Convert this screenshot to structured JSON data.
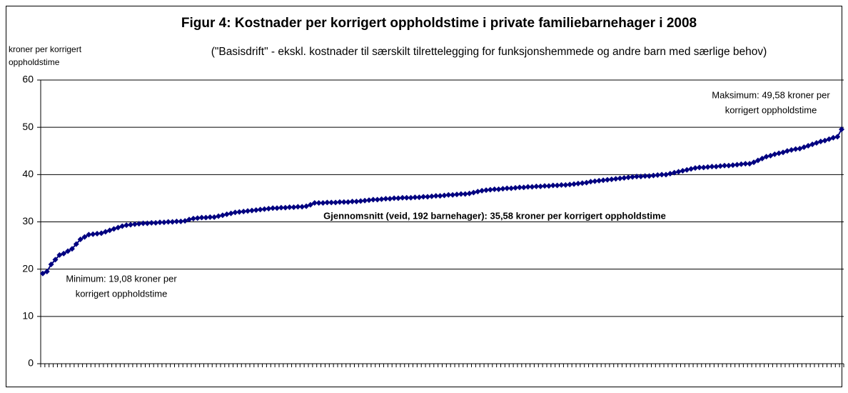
{
  "chart_data": {
    "type": "line",
    "title": "Figur 4: Kostnader per korrigert oppholdstime i private familiebarnehager i 2008",
    "subtitle": "(\"Basisdrift\" - ekskl. kostnader til særskilt tilrettelegging for funksjonshemmede og andre barn med særlige behov)",
    "y_label": [
      "kroner per korrigert",
      "oppholdstime"
    ],
    "annotations": [
      [
        "Maksimum: 49,58 kroner per",
        "korrigert oppholdstime"
      ],
      [
        "Gjennomsnitt (veid, 192 barnehager): 35,58 kroner per korrigert oppholdstime"
      ],
      [
        "Minimum: 19,08 kroner per",
        "korrigert oppholdstime"
      ]
    ],
    "color": "#000080",
    "ylim": [
      0,
      60
    ],
    "yticks": [
      0,
      10,
      20,
      30,
      40,
      50,
      60
    ],
    "grid": true,
    "categories": [
      null,
      null,
      null,
      null,
      null,
      null,
      null,
      null,
      null,
      null,
      null,
      null,
      null,
      null,
      null,
      null,
      null,
      null,
      null,
      null,
      null,
      null,
      null,
      null,
      null,
      null,
      null,
      null,
      null,
      null,
      null,
      null,
      null,
      null,
      null,
      null,
      null,
      null,
      null,
      null,
      null,
      null,
      null,
      null,
      null,
      null,
      null,
      null,
      null,
      null,
      null,
      null,
      null,
      null,
      null,
      null,
      null,
      null,
      null,
      null,
      null,
      null,
      null,
      null,
      null,
      null,
      null,
      null,
      null,
      null,
      null,
      null,
      null,
      null,
      null,
      null,
      null,
      null,
      null,
      null,
      null,
      null,
      null,
      null,
      null,
      null,
      null,
      null,
      null,
      null,
      null,
      null,
      null,
      null,
      null,
      null,
      null,
      null,
      null,
      null,
      null,
      null,
      null,
      null,
      null,
      null,
      null,
      null,
      null,
      null,
      null,
      null,
      null,
      null,
      null,
      null,
      null,
      null,
      null,
      null,
      null,
      null,
      null,
      null,
      null,
      null,
      null,
      null,
      null,
      null,
      null,
      null,
      null,
      null,
      null,
      null,
      null,
      null,
      null,
      null,
      null,
      null,
      null,
      null,
      null,
      null,
      null,
      null,
      null,
      null,
      null,
      null,
      null,
      null,
      null,
      null,
      null,
      null,
      null,
      null,
      null,
      null,
      null,
      null,
      null,
      null,
      null,
      null,
      null,
      null,
      null,
      null,
      null,
      null,
      null,
      null,
      null,
      null,
      null,
      null,
      null,
      null,
      null,
      null,
      null,
      null,
      null,
      null,
      null,
      null,
      null,
      null
    ],
    "values": [
      19.08,
      19.5,
      21.0,
      22.0,
      23.0,
      23.3,
      23.8,
      24.3,
      25.3,
      26.3,
      26.8,
      27.3,
      27.4,
      27.5,
      27.6,
      27.9,
      28.2,
      28.5,
      28.8,
      29.1,
      29.3,
      29.4,
      29.5,
      29.6,
      29.7,
      29.7,
      29.8,
      29.8,
      29.9,
      29.9,
      30.0,
      30.0,
      30.1,
      30.1,
      30.2,
      30.5,
      30.7,
      30.8,
      30.9,
      30.9,
      31.0,
      31.0,
      31.2,
      31.4,
      31.6,
      31.8,
      32.0,
      32.1,
      32.2,
      32.3,
      32.4,
      32.5,
      32.6,
      32.7,
      32.8,
      32.9,
      32.9,
      33.0,
      33.0,
      33.1,
      33.1,
      33.2,
      33.2,
      33.3,
      33.6,
      34.0,
      34.0,
      34.0,
      34.1,
      34.1,
      34.1,
      34.2,
      34.2,
      34.2,
      34.3,
      34.3,
      34.4,
      34.5,
      34.6,
      34.7,
      34.7,
      34.8,
      34.9,
      34.9,
      35.0,
      35.0,
      35.1,
      35.1,
      35.1,
      35.2,
      35.2,
      35.3,
      35.3,
      35.4,
      35.5,
      35.5,
      35.6,
      35.7,
      35.7,
      35.8,
      35.9,
      35.9,
      36.0,
      36.2,
      36.4,
      36.6,
      36.7,
      36.8,
      36.9,
      36.9,
      37.0,
      37.1,
      37.1,
      37.2,
      37.3,
      37.3,
      37.4,
      37.4,
      37.5,
      37.5,
      37.6,
      37.6,
      37.7,
      37.7,
      37.8,
      37.8,
      37.9,
      38.0,
      38.1,
      38.2,
      38.3,
      38.5,
      38.6,
      38.7,
      38.8,
      38.9,
      39.0,
      39.1,
      39.2,
      39.3,
      39.4,
      39.5,
      39.6,
      39.6,
      39.7,
      39.7,
      39.8,
      39.9,
      40.0,
      40.0,
      40.2,
      40.4,
      40.6,
      40.8,
      41.0,
      41.2,
      41.4,
      41.5,
      41.5,
      41.6,
      41.7,
      41.7,
      41.8,
      41.9,
      41.9,
      42.0,
      42.1,
      42.2,
      42.3,
      42.3,
      42.6,
      43.0,
      43.4,
      43.8,
      44.0,
      44.3,
      44.5,
      44.7,
      45.0,
      45.2,
      45.4,
      45.5,
      45.8,
      46.1,
      46.4,
      46.7,
      47.0,
      47.2,
      47.5,
      47.8,
      48.0,
      49.58
    ]
  }
}
